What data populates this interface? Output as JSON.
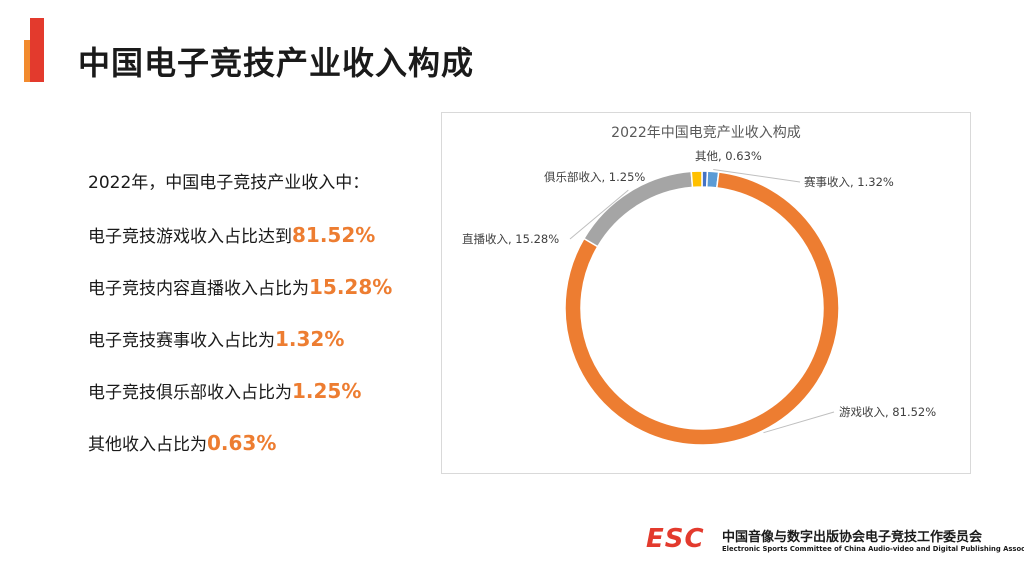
{
  "page": {
    "title": "中国电子竞技产业收入构成"
  },
  "summary": {
    "intro": "2022年，中国电子竞技产业收入中：",
    "items": [
      {
        "prefix": "电子竞技游戏收入占比达到",
        "value": "81.52%"
      },
      {
        "prefix": "电子竞技内容直播收入占比为",
        "value": "15.28%"
      },
      {
        "prefix": "电子竞技赛事收入占比为",
        "value": "1.32%"
      },
      {
        "prefix": "电子竞技俱乐部收入占比为",
        "value": "1.25%"
      },
      {
        "prefix": "其他收入占比为",
        "value": "0.63%"
      }
    ]
  },
  "chart_data": {
    "type": "pie",
    "variant": "donut",
    "title": "2022年中国电竞产业收入构成",
    "slices": [
      {
        "label": "其他",
        "value": 0.63,
        "display": "其他, 0.63%",
        "color": "#4472c4"
      },
      {
        "label": "赛事收入",
        "value": 1.32,
        "display": "赛事收入, 1.32%",
        "color": "#5b9bd5"
      },
      {
        "label": "游戏收入",
        "value": 81.52,
        "display": "游戏收入, 81.52%",
        "color": "#ed7d31"
      },
      {
        "label": "直播收入",
        "value": 15.28,
        "display": "直播收入, 15.28%",
        "color": "#a5a5a5"
      },
      {
        "label": "俱乐部收入",
        "value": 1.25,
        "display": "俱乐部收入, 1.25%",
        "color": "#ffc000"
      }
    ]
  },
  "footer": {
    "logo_text": "ESC",
    "org_cn": "中国音像与数字出版协会电子竞技工作委员会",
    "org_en": "Electronic Sports Committee of China Audio-video and Digital Publishing Association"
  },
  "colors": {
    "accent_red": "#e33a2d",
    "accent_orange": "#f28a2e",
    "highlight": "#ed7d31"
  }
}
